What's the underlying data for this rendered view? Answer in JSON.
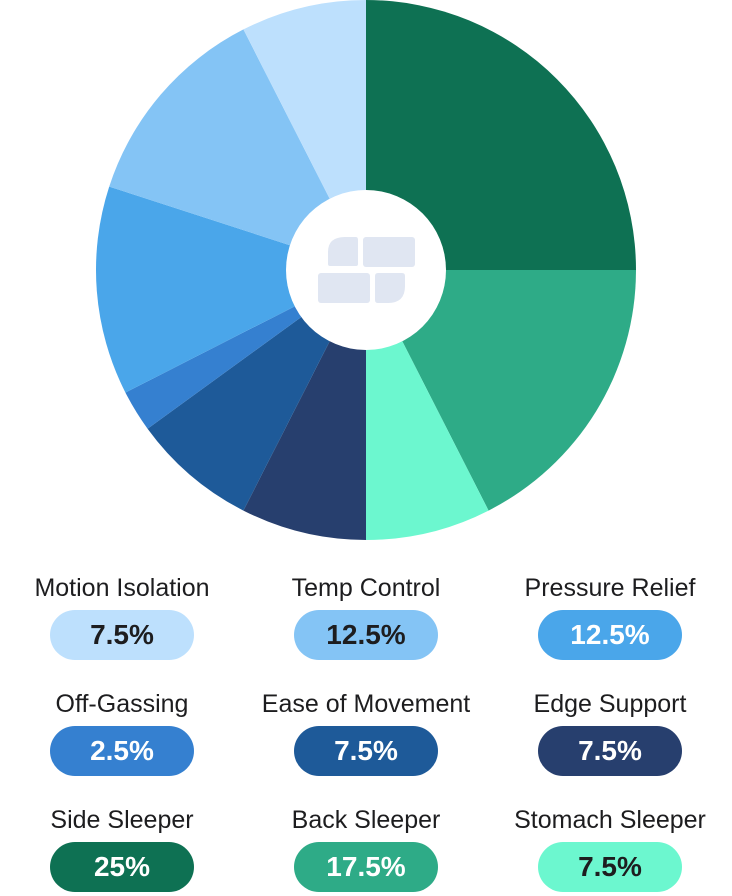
{
  "chart_data": {
    "type": "pie",
    "style": "donut",
    "slices": [
      {
        "label": "Side Sleeper",
        "value": 25,
        "display": "25%",
        "color": "#0e7153",
        "text_color": "#ffffff"
      },
      {
        "label": "Back Sleeper",
        "value": 17.5,
        "display": "17.5%",
        "color": "#2eab87",
        "text_color": "#ffffff"
      },
      {
        "label": "Stomach Sleeper",
        "value": 7.5,
        "display": "7.5%",
        "color": "#6cf7cf",
        "text_color": "#1d1d1f"
      },
      {
        "label": "Edge Support",
        "value": 7.5,
        "display": "7.5%",
        "color": "#273f6e",
        "text_color": "#ffffff"
      },
      {
        "label": "Ease of Movement",
        "value": 7.5,
        "display": "7.5%",
        "color": "#1e5a99",
        "text_color": "#ffffff"
      },
      {
        "label": "Off-Gassing",
        "value": 2.5,
        "display": "2.5%",
        "color": "#3580d0",
        "text_color": "#ffffff"
      },
      {
        "label": "Pressure Relief",
        "value": 12.5,
        "display": "12.5%",
        "color": "#4aa6ea",
        "text_color": "#ffffff"
      },
      {
        "label": "Temp Control",
        "value": 12.5,
        "display": "12.5%",
        "color": "#84c4f5",
        "text_color": "#1d1d1f"
      },
      {
        "label": "Motion Isolation",
        "value": 7.5,
        "display": "7.5%",
        "color": "#bde0fd",
        "text_color": "#1d1d1f"
      }
    ],
    "legend_order": [
      "Motion Isolation",
      "Temp Control",
      "Pressure Relief",
      "Off-Gassing",
      "Ease of Movement",
      "Edge Support",
      "Side Sleeper",
      "Back Sleeper",
      "Stomach Sleeper"
    ],
    "legend_placement": "bottom",
    "center_icon": "brand-logo-icon",
    "center_icon_color": "#e0e6f2"
  }
}
